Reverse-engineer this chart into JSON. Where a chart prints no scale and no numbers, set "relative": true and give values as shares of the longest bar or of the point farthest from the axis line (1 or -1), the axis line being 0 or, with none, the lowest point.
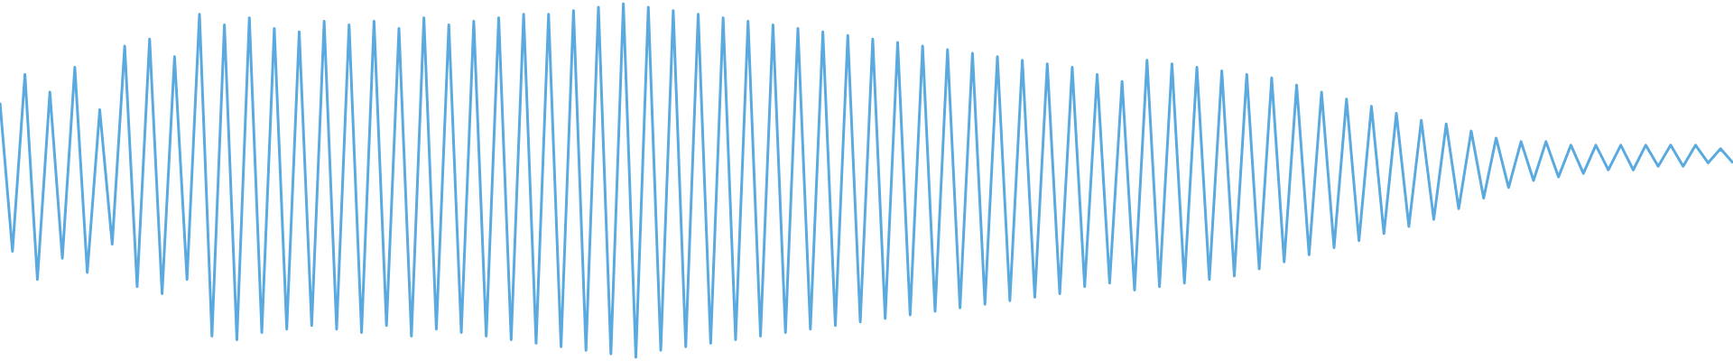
{
  "chart_data": {
    "type": "line",
    "relative": true,
    "categories": [
      null,
      null,
      null,
      null,
      null,
      null,
      null,
      null,
      null,
      null,
      null,
      null,
      null,
      null,
      null,
      null,
      null,
      null,
      null,
      null,
      null,
      null,
      null,
      null,
      null,
      null,
      null,
      null,
      null,
      null,
      null,
      null,
      null,
      null,
      null,
      null,
      null,
      null,
      null,
      null,
      null,
      null,
      null,
      null,
      null,
      null,
      null,
      null,
      null,
      null,
      null,
      null,
      null,
      null,
      null,
      null,
      null,
      null,
      null,
      null,
      null,
      null,
      null,
      null,
      null,
      null,
      null,
      null,
      null,
      null,
      null,
      null,
      null,
      null,
      null,
      null,
      null,
      null,
      null,
      null,
      null,
      null,
      null,
      null,
      null,
      null,
      null,
      null,
      null,
      null,
      null,
      null,
      null,
      null,
      null,
      null,
      null,
      null,
      null,
      null,
      null,
      null,
      null,
      null,
      null,
      null,
      null,
      null,
      null,
      null,
      null,
      null,
      null,
      null,
      null,
      null,
      null,
      null,
      null,
      null,
      null,
      null,
      null,
      null,
      null,
      null,
      null,
      null,
      null,
      null,
      null,
      null,
      null,
      null,
      null,
      null,
      null,
      null,
      null,
      null
    ],
    "series": [
      {
        "color": "#5aaae0",
        "values": [
          0.72,
          0.3,
          0.8,
          0.22,
          0.75,
          0.28,
          0.82,
          0.24,
          0.7,
          0.32,
          0.88,
          0.2,
          0.9,
          0.18,
          0.85,
          0.22,
          0.97,
          0.06,
          0.94,
          0.05,
          0.96,
          0.07,
          0.93,
          0.08,
          0.92,
          0.09,
          0.95,
          0.08,
          0.94,
          0.07,
          0.95,
          0.09,
          0.93,
          0.06,
          0.96,
          0.08,
          0.94,
          0.07,
          0.95,
          0.06,
          0.96,
          0.05,
          0.97,
          0.04,
          0.97,
          0.03,
          0.98,
          0.02,
          0.99,
          0.01,
          1.0,
          0.0,
          0.99,
          0.02,
          0.98,
          0.03,
          0.97,
          0.04,
          0.96,
          0.05,
          0.95,
          0.06,
          0.94,
          0.07,
          0.93,
          0.08,
          0.92,
          0.09,
          0.91,
          0.1,
          0.9,
          0.11,
          0.89,
          0.12,
          0.88,
          0.13,
          0.87,
          0.14,
          0.86,
          0.15,
          0.85,
          0.16,
          0.84,
          0.17,
          0.83,
          0.18,
          0.82,
          0.2,
          0.8,
          0.21,
          0.78,
          0.19,
          0.84,
          0.2,
          0.83,
          0.21,
          0.82,
          0.22,
          0.81,
          0.23,
          0.8,
          0.25,
          0.79,
          0.27,
          0.77,
          0.29,
          0.75,
          0.31,
          0.73,
          0.33,
          0.71,
          0.35,
          0.69,
          0.37,
          0.67,
          0.39,
          0.66,
          0.42,
          0.64,
          0.45,
          0.62,
          0.48,
          0.61,
          0.5,
          0.61,
          0.51,
          0.6,
          0.52,
          0.6,
          0.53,
          0.6,
          0.53,
          0.6,
          0.54,
          0.6,
          0.54,
          0.6,
          0.55,
          0.59,
          0.55
        ]
      }
    ]
  }
}
